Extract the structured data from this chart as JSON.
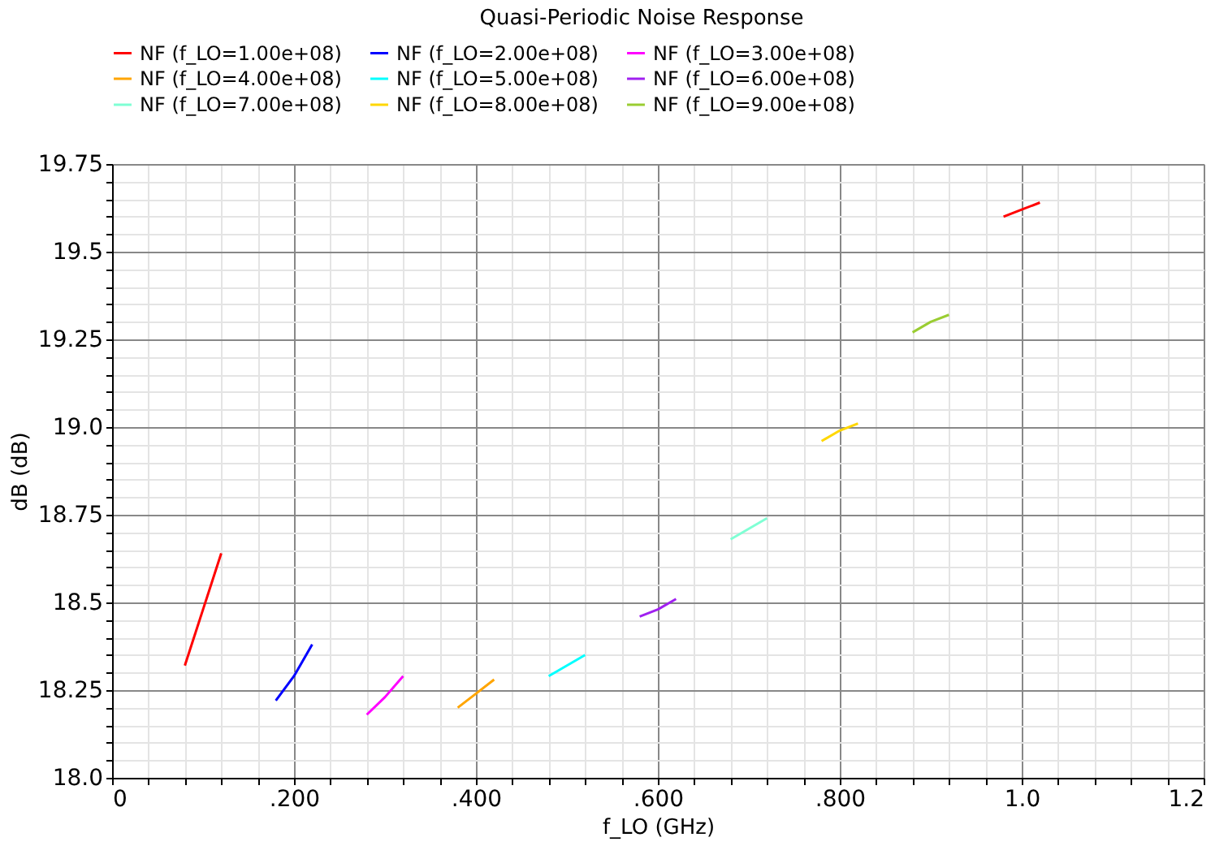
{
  "chart_data": {
    "type": "line",
    "title": "Quasi-Periodic Noise Response",
    "xlabel": "f_LO (GHz)",
    "ylabel": "dB (dB)",
    "xlim": [
      0,
      1.2
    ],
    "ylim": [
      18.0,
      19.75
    ],
    "xticks": [
      0,
      {
        "value": 0.04,
        "label": null
      },
      {
        "value": 0.08,
        "label": null
      },
      {
        "value": 0.12,
        "label": null
      },
      {
        "value": 0.16,
        "label": null
      },
      {
        "value": 0.2,
        "label": ".200"
      },
      {
        "value": 0.24,
        "label": null
      },
      {
        "value": 0.28,
        "label": null
      },
      {
        "value": 0.32,
        "label": null
      },
      {
        "value": 0.36,
        "label": null
      },
      {
        "value": 0.4,
        "label": ".400"
      },
      {
        "value": 0.44,
        "label": null
      },
      {
        "value": 0.48,
        "label": null
      },
      {
        "value": 0.52,
        "label": null
      },
      {
        "value": 0.56,
        "label": null
      },
      {
        "value": 0.6,
        "label": ".600"
      },
      {
        "value": 0.64,
        "label": null
      },
      {
        "value": 0.68,
        "label": null
      },
      {
        "value": 0.72,
        "label": null
      },
      {
        "value": 0.76,
        "label": null
      },
      {
        "value": 0.8,
        "label": ".800"
      },
      {
        "value": 0.84,
        "label": null
      },
      {
        "value": 0.88,
        "label": null
      },
      {
        "value": 0.92,
        "label": null
      },
      {
        "value": 0.96,
        "label": null
      },
      {
        "value": 1.0,
        "label": "1.0"
      },
      {
        "value": 1.04,
        "label": null
      },
      {
        "value": 1.08,
        "label": null
      },
      {
        "value": 1.12,
        "label": null
      },
      {
        "value": 1.16,
        "label": null
      },
      {
        "value": 1.2,
        "label": "1.2"
      }
    ],
    "yticks": [
      {
        "value": 18.0,
        "label": "18.0"
      },
      {
        "value": 18.05,
        "label": null
      },
      {
        "value": 18.1,
        "label": null
      },
      {
        "value": 18.15,
        "label": null
      },
      {
        "value": 18.2,
        "label": null
      },
      18.25,
      {
        "value": 18.3,
        "label": null
      },
      {
        "value": 18.35,
        "label": null
      },
      {
        "value": 18.4,
        "label": null
      },
      {
        "value": 18.45,
        "label": null
      },
      18.5,
      {
        "value": 18.55,
        "label": null
      },
      {
        "value": 18.6,
        "label": null
      },
      {
        "value": 18.65,
        "label": null
      },
      {
        "value": 18.7,
        "label": null
      },
      18.75,
      {
        "value": 18.8,
        "label": null
      },
      {
        "value": 18.85,
        "label": null
      },
      {
        "value": 18.9,
        "label": null
      },
      {
        "value": 18.95,
        "label": null
      },
      {
        "value": 19.0,
        "label": "19.0"
      },
      {
        "value": 19.05,
        "label": null
      },
      {
        "value": 19.1,
        "label": null
      },
      {
        "value": 19.15,
        "label": null
      },
      {
        "value": 19.2,
        "label": null
      },
      19.25,
      {
        "value": 19.3,
        "label": null
      },
      {
        "value": 19.35,
        "label": null
      },
      {
        "value": 19.4,
        "label": null
      },
      {
        "value": 19.45,
        "label": null
      },
      19.5,
      {
        "value": 19.55,
        "label": null
      },
      {
        "value": 19.6,
        "label": null
      },
      {
        "value": 19.65,
        "label": null
      },
      {
        "value": 19.7,
        "label": null
      },
      19.75
    ],
    "grid": true,
    "legend": "top left",
    "marker": "none",
    "line_style": "solid",
    "series": [
      {
        "name": "NF (f_LO=1.00e+08)",
        "color": "#ff0000",
        "x": [
          0.08,
          0.1,
          0.12
        ],
        "values": [
          18.32,
          18.48,
          18.64
        ]
      },
      {
        "name": "NF (f_LO=2.00e+08)",
        "color": "#0000ff",
        "x": [
          0.18,
          0.2,
          0.22
        ],
        "values": [
          18.22,
          18.29,
          18.38
        ]
      },
      {
        "name": "NF (f_LO=3.00e+08)",
        "color": "#ff00ff",
        "x": [
          0.28,
          0.3,
          0.32
        ],
        "values": [
          18.18,
          18.23,
          18.29
        ]
      },
      {
        "name": "NF (f_LO=4.00e+08)",
        "color": "#ffa500",
        "x": [
          0.38,
          0.4,
          0.42
        ],
        "values": [
          18.2,
          18.24,
          18.28
        ]
      },
      {
        "name": "NF (f_LO=5.00e+08)",
        "color": "#00ffff",
        "x": [
          0.48,
          0.5,
          0.52
        ],
        "values": [
          18.29,
          18.32,
          18.35
        ]
      },
      {
        "name": "NF (f_LO=6.00e+08)",
        "color": "#a020f0",
        "x": [
          0.58,
          0.6,
          0.62
        ],
        "values": [
          18.46,
          18.48,
          18.51
        ]
      },
      {
        "name": "NF (f_LO=7.00e+08)",
        "color": "#7fffd4",
        "x": [
          0.68,
          0.7,
          0.72
        ],
        "values": [
          18.68,
          18.71,
          18.74
        ]
      },
      {
        "name": "NF (f_LO=8.00e+08)",
        "color": "#ffd700",
        "x": [
          0.78,
          0.8,
          0.82
        ],
        "values": [
          18.96,
          18.99,
          19.01
        ]
      },
      {
        "name": "NF (f_LO=9.00e+08)",
        "color": "#9acd32",
        "x": [
          0.88,
          0.9,
          0.92
        ],
        "values": [
          19.27,
          19.3,
          19.32
        ]
      },
      {
        "color": "#ff0000",
        "x": [
          0.98,
          1.0,
          1.02
        ],
        "values": [
          19.6,
          19.62,
          19.64
        ]
      }
    ]
  }
}
